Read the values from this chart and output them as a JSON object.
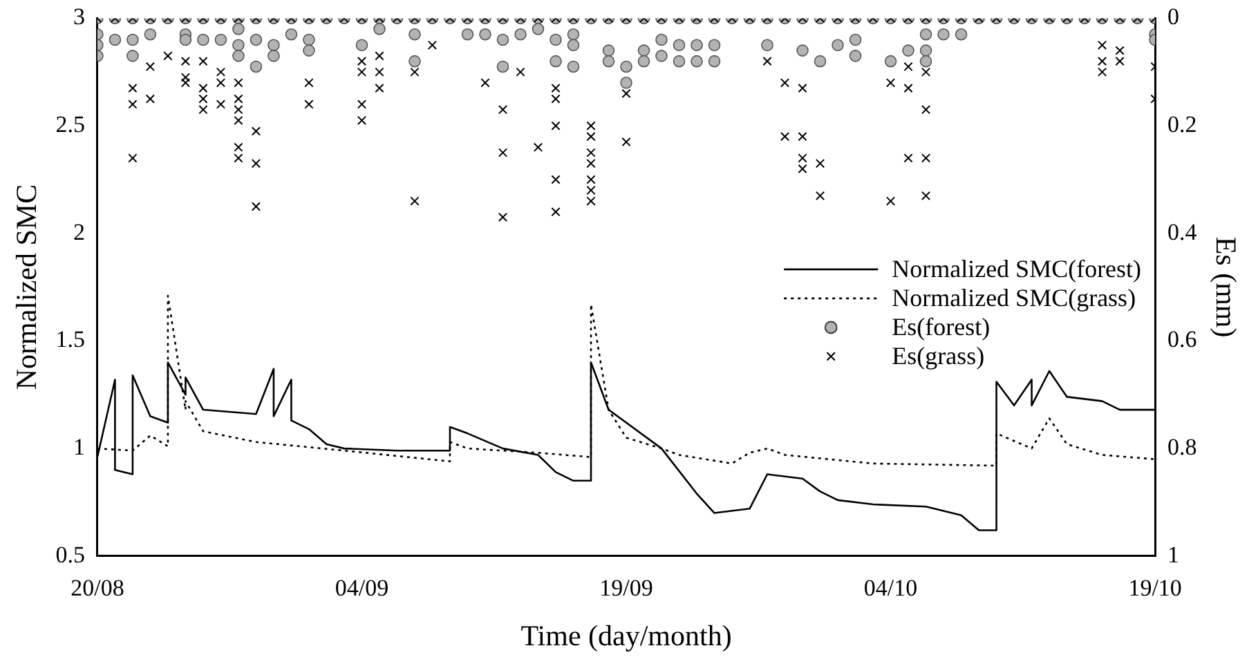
{
  "chart_data": {
    "type": "line",
    "xlabel": "Time (day/month)",
    "ylabel": "Normalized SMC",
    "y2label": "Es (mm)",
    "xlim": [
      "--08-20",
      "--10-19"
    ],
    "xticks": [
      {
        "value": "--08-20",
        "label": "20/08"
      },
      {
        "value": "--09-04",
        "label": "04/09"
      },
      {
        "value": "--09-19",
        "label": "19/09"
      },
      {
        "value": "--10-04",
        "label": "04/10"
      },
      {
        "value": "--10-19",
        "label": "19/10"
      }
    ],
    "ylim": [
      0.5,
      3
    ],
    "yticks": [
      0.5,
      1,
      1.5,
      2,
      2.5,
      3
    ],
    "y2lim": [
      1,
      0
    ],
    "y2ticks": [
      0,
      0.2,
      0.4,
      0.6,
      0.8,
      1
    ],
    "grid": false,
    "legend": "right",
    "series": [
      {
        "name": "Normalized SMC(forest)",
        "color": "#000000",
        "line_style": "solid",
        "marker": "none",
        "x": [
          "--08-20",
          "--08-21",
          "--08-21",
          "--08-22",
          "--08-22",
          "--08-23",
          "--08-24",
          "--08-24",
          "--08-25",
          "--08-25",
          "--08-26",
          "--08-29",
          "--08-30",
          "--08-30",
          "--08-31",
          "--08-31",
          "--09-01",
          "--09-02",
          "--09-03",
          "--09-06",
          "--09-09",
          "--09-09",
          "--09-10",
          "--09-12",
          "--09-14",
          "--09-15",
          "--09-16",
          "--09-17",
          "--09-17",
          "--09-18",
          "--09-21",
          "--09-23",
          "--09-24",
          "--09-26",
          "--09-27",
          "--09-29",
          "--09-30",
          "--10-01",
          "--10-03",
          "--10-06",
          "--10-08",
          "--10-09",
          "--10-10",
          "--10-10",
          "--10-11",
          "--10-12",
          "--10-12",
          "--10-13",
          "--10-14",
          "--10-16",
          "--10-17",
          "--10-19"
        ],
        "values": [
          0.96,
          1.32,
          0.9,
          0.88,
          1.34,
          1.15,
          1.12,
          1.4,
          1.25,
          1.33,
          1.18,
          1.16,
          1.37,
          1.15,
          1.32,
          1.13,
          1.09,
          1.02,
          1.0,
          0.99,
          0.99,
          1.1,
          1.07,
          1.0,
          0.97,
          0.89,
          0.85,
          0.85,
          1.4,
          1.18,
          1.0,
          0.79,
          0.7,
          0.72,
          0.88,
          0.86,
          0.8,
          0.76,
          0.74,
          0.73,
          0.69,
          0.62,
          0.62,
          1.31,
          1.2,
          1.32,
          1.2,
          1.36,
          1.24,
          1.22,
          1.18,
          1.18
        ]
      },
      {
        "name": "Normalized SMC(grass)",
        "color": "#000000",
        "line_style": "dotted",
        "marker": "none",
        "x": [
          "--08-20",
          "--08-22",
          "--08-23",
          "--08-24",
          "--08-24",
          "--08-25",
          "--08-25",
          "--08-26",
          "--08-29",
          "--09-03",
          "--09-09",
          "--09-09",
          "--09-10",
          "--09-14",
          "--09-17",
          "--09-17",
          "--09-18",
          "--09-19",
          "--09-21",
          "--09-22",
          "--09-25",
          "--09-26",
          "--09-27",
          "--09-28",
          "--10-03",
          "--10-10",
          "--10-10",
          "--10-12",
          "--10-13",
          "--10-14",
          "--10-16",
          "--10-19"
        ],
        "values": [
          1.0,
          0.99,
          1.06,
          1.01,
          1.71,
          1.18,
          1.22,
          1.08,
          1.03,
          0.99,
          0.94,
          1.03,
          1.0,
          0.98,
          0.96,
          1.67,
          1.18,
          1.05,
          1.0,
          0.97,
          0.93,
          0.98,
          1.0,
          0.97,
          0.93,
          0.92,
          1.07,
          1.0,
          1.14,
          1.02,
          0.97,
          0.95
        ]
      },
      {
        "name": "Es(forest)",
        "type": "scatter",
        "axis": "y2",
        "color": "#b3b3b3",
        "marker": "circle",
        "x": [
          "--08-20",
          "--08-21",
          "--08-22",
          "--08-23",
          "--08-24",
          "--08-25",
          "--08-26",
          "--08-27",
          "--08-28",
          "--08-29",
          "--08-30",
          "--08-31",
          "--09-01",
          "--09-02",
          "--09-03",
          "--09-04",
          "--09-05",
          "--09-06",
          "--09-07",
          "--09-08",
          "--09-09",
          "--09-10",
          "--09-11",
          "--09-12",
          "--09-13",
          "--09-14",
          "--09-15",
          "--09-16",
          "--09-17",
          "--09-18",
          "--09-19",
          "--09-20",
          "--09-21",
          "--09-22",
          "--09-23",
          "--09-24",
          "--09-25",
          "--09-26",
          "--09-27",
          "--09-28",
          "--09-29",
          "--09-30",
          "--10-01",
          "--10-02",
          "--10-03",
          "--10-04",
          "--10-05",
          "--10-06",
          "--10-07",
          "--10-08",
          "--10-09",
          "--10-10",
          "--10-11",
          "--10-12",
          "--10-13",
          "--10-14",
          "--10-15",
          "--10-16",
          "--10-17",
          "--10-18",
          "--10-19",
          "--08-20",
          "--08-20",
          "--08-20",
          "--08-21",
          "--08-22",
          "--08-22",
          "--08-23",
          "--08-25",
          "--08-25",
          "--08-26",
          "--08-27",
          "--08-28",
          "--08-28",
          "--08-28",
          "--08-29",
          "--08-29",
          "--08-30",
          "--08-30",
          "--08-31",
          "--09-01",
          "--09-01",
          "--09-04",
          "--09-05",
          "--09-07",
          "--09-07",
          "--09-10",
          "--09-11",
          "--09-12",
          "--09-12",
          "--09-13",
          "--09-14",
          "--09-15",
          "--09-15",
          "--09-16",
          "--09-16",
          "--09-16",
          "--09-18",
          "--09-18",
          "--09-19",
          "--09-19",
          "--09-20",
          "--09-20",
          "--09-21",
          "--09-21",
          "--09-22",
          "--09-22",
          "--09-23",
          "--09-23",
          "--09-24",
          "--09-24",
          "--09-27",
          "--09-29",
          "--09-30",
          "--10-01",
          "--10-02",
          "--10-02",
          "--10-04",
          "--10-05",
          "--10-06",
          "--10-06",
          "--10-06",
          "--10-07",
          "--10-08",
          "--10-19",
          "--10-19"
        ],
        "values": [
          0,
          0,
          0,
          0,
          0,
          0,
          0,
          0,
          0,
          0,
          0,
          0,
          0,
          0,
          0,
          0,
          0,
          0,
          0,
          0,
          0,
          0,
          0,
          0,
          0,
          0,
          0,
          0,
          0,
          0,
          0,
          0,
          0,
          0,
          0,
          0,
          0,
          0,
          0,
          0,
          0,
          0,
          0,
          0,
          0,
          0,
          0,
          0,
          0,
          0,
          0,
          0,
          0,
          0,
          0,
          0,
          0,
          0,
          0,
          0,
          0,
          0.03,
          0.05,
          0.07,
          0.04,
          0.04,
          0.07,
          0.03,
          0.03,
          0.04,
          0.04,
          0.04,
          0.02,
          0.05,
          0.07,
          0.04,
          0.09,
          0.05,
          0.07,
          0.03,
          0.04,
          0.06,
          0.05,
          0.02,
          0.03,
          0.08,
          0.03,
          0.03,
          0.04,
          0.09,
          0.03,
          0.02,
          0.04,
          0.08,
          0.03,
          0.05,
          0.09,
          0.06,
          0.08,
          0.09,
          0.12,
          0.06,
          0.08,
          0.04,
          0.07,
          0.05,
          0.08,
          0.05,
          0.08,
          0.05,
          0.08,
          0.05,
          0.06,
          0.08,
          0.05,
          0.04,
          0.07,
          0.08,
          0.06,
          0.03,
          0.06,
          0.08,
          0.03,
          0.03,
          0.03,
          0.04
        ]
      },
      {
        "name": "Es(grass)",
        "type": "scatter",
        "axis": "y2",
        "color": "#000000",
        "marker": "cross",
        "x": [
          "--08-20",
          "--08-21",
          "--08-22",
          "--08-23",
          "--08-24",
          "--08-25",
          "--08-26",
          "--08-27",
          "--08-28",
          "--08-29",
          "--08-30",
          "--08-31",
          "--09-01",
          "--09-02",
          "--09-03",
          "--09-04",
          "--09-05",
          "--09-06",
          "--09-07",
          "--09-08",
          "--09-09",
          "--09-10",
          "--09-11",
          "--09-12",
          "--09-13",
          "--09-14",
          "--09-15",
          "--09-16",
          "--09-17",
          "--09-18",
          "--09-19",
          "--09-20",
          "--09-21",
          "--09-22",
          "--09-23",
          "--09-24",
          "--09-25",
          "--09-26",
          "--09-27",
          "--09-28",
          "--09-29",
          "--09-30",
          "--10-01",
          "--10-02",
          "--10-03",
          "--10-04",
          "--10-05",
          "--10-06",
          "--10-07",
          "--10-08",
          "--10-09",
          "--10-10",
          "--10-11",
          "--10-12",
          "--10-13",
          "--10-14",
          "--10-15",
          "--10-16",
          "--10-17",
          "--10-18",
          "--10-19",
          "--08-22",
          "--08-22",
          "--08-22",
          "--08-23",
          "--08-23",
          "--08-24",
          "--08-25",
          "--08-25",
          "--08-25",
          "--08-26",
          "--08-26",
          "--08-26",
          "--08-26",
          "--08-27",
          "--08-27",
          "--08-27",
          "--08-28",
          "--08-28",
          "--08-28",
          "--08-28",
          "--08-28",
          "--08-28",
          "--08-29",
          "--08-29",
          "--08-29",
          "--09-01",
          "--09-01",
          "--09-04",
          "--09-04",
          "--09-04",
          "--09-04",
          "--09-05",
          "--09-05",
          "--09-05",
          "--09-07",
          "--09-07",
          "--09-08",
          "--09-11",
          "--09-12",
          "--09-12",
          "--09-12",
          "--09-13",
          "--09-14",
          "--09-15",
          "--09-15",
          "--09-15",
          "--09-15",
          "--09-15",
          "--09-17",
          "--09-17",
          "--09-17",
          "--09-17",
          "--09-17",
          "--09-17",
          "--09-17",
          "--09-19",
          "--09-19",
          "--09-27",
          "--09-28",
          "--09-28",
          "--09-29",
          "--09-29",
          "--09-29",
          "--09-29",
          "--09-30",
          "--09-30",
          "--10-04",
          "--10-04",
          "--10-05",
          "--10-05",
          "--10-05",
          "--10-06",
          "--10-06",
          "--10-06",
          "--10-06",
          "--10-16",
          "--10-16",
          "--10-16",
          "--10-17",
          "--10-17",
          "--10-19",
          "--10-19"
        ],
        "values": [
          0,
          0,
          0,
          0,
          0,
          0,
          0,
          0,
          0,
          0,
          0,
          0,
          0,
          0,
          0,
          0,
          0,
          0,
          0,
          0,
          0,
          0,
          0,
          0,
          0,
          0,
          0,
          0,
          0,
          0,
          0,
          0,
          0,
          0,
          0,
          0,
          0,
          0,
          0,
          0,
          0,
          0,
          0,
          0,
          0,
          0,
          0,
          0,
          0,
          0,
          0,
          0,
          0,
          0,
          0,
          0,
          0,
          0,
          0,
          0,
          0,
          0.13,
          0.16,
          0.26,
          0.09,
          0.15,
          0.07,
          0.08,
          0.11,
          0.12,
          0.08,
          0.13,
          0.15,
          0.17,
          0.1,
          0.12,
          0.16,
          0.12,
          0.15,
          0.17,
          0.19,
          0.24,
          0.26,
          0.21,
          0.27,
          0.35,
          0.12,
          0.16,
          0.16,
          0.19,
          0.08,
          0.1,
          0.07,
          0.1,
          0.13,
          0.1,
          0.34,
          0.05,
          0.12,
          0.17,
          0.25,
          0.37,
          0.1,
          0.24,
          0.13,
          0.15,
          0.3,
          0.36,
          0.2,
          0.2,
          0.22,
          0.25,
          0.27,
          0.3,
          0.32,
          0.34,
          0.14,
          0.23,
          0.08,
          0.12,
          0.22,
          0.13,
          0.22,
          0.26,
          0.28,
          0.27,
          0.33,
          0.12,
          0.34,
          0.09,
          0.13,
          0.26,
          0.1,
          0.17,
          0.26,
          0.33,
          0.05,
          0.08,
          0.1,
          0.06,
          0.08,
          0.09,
          0.15
        ]
      }
    ]
  }
}
